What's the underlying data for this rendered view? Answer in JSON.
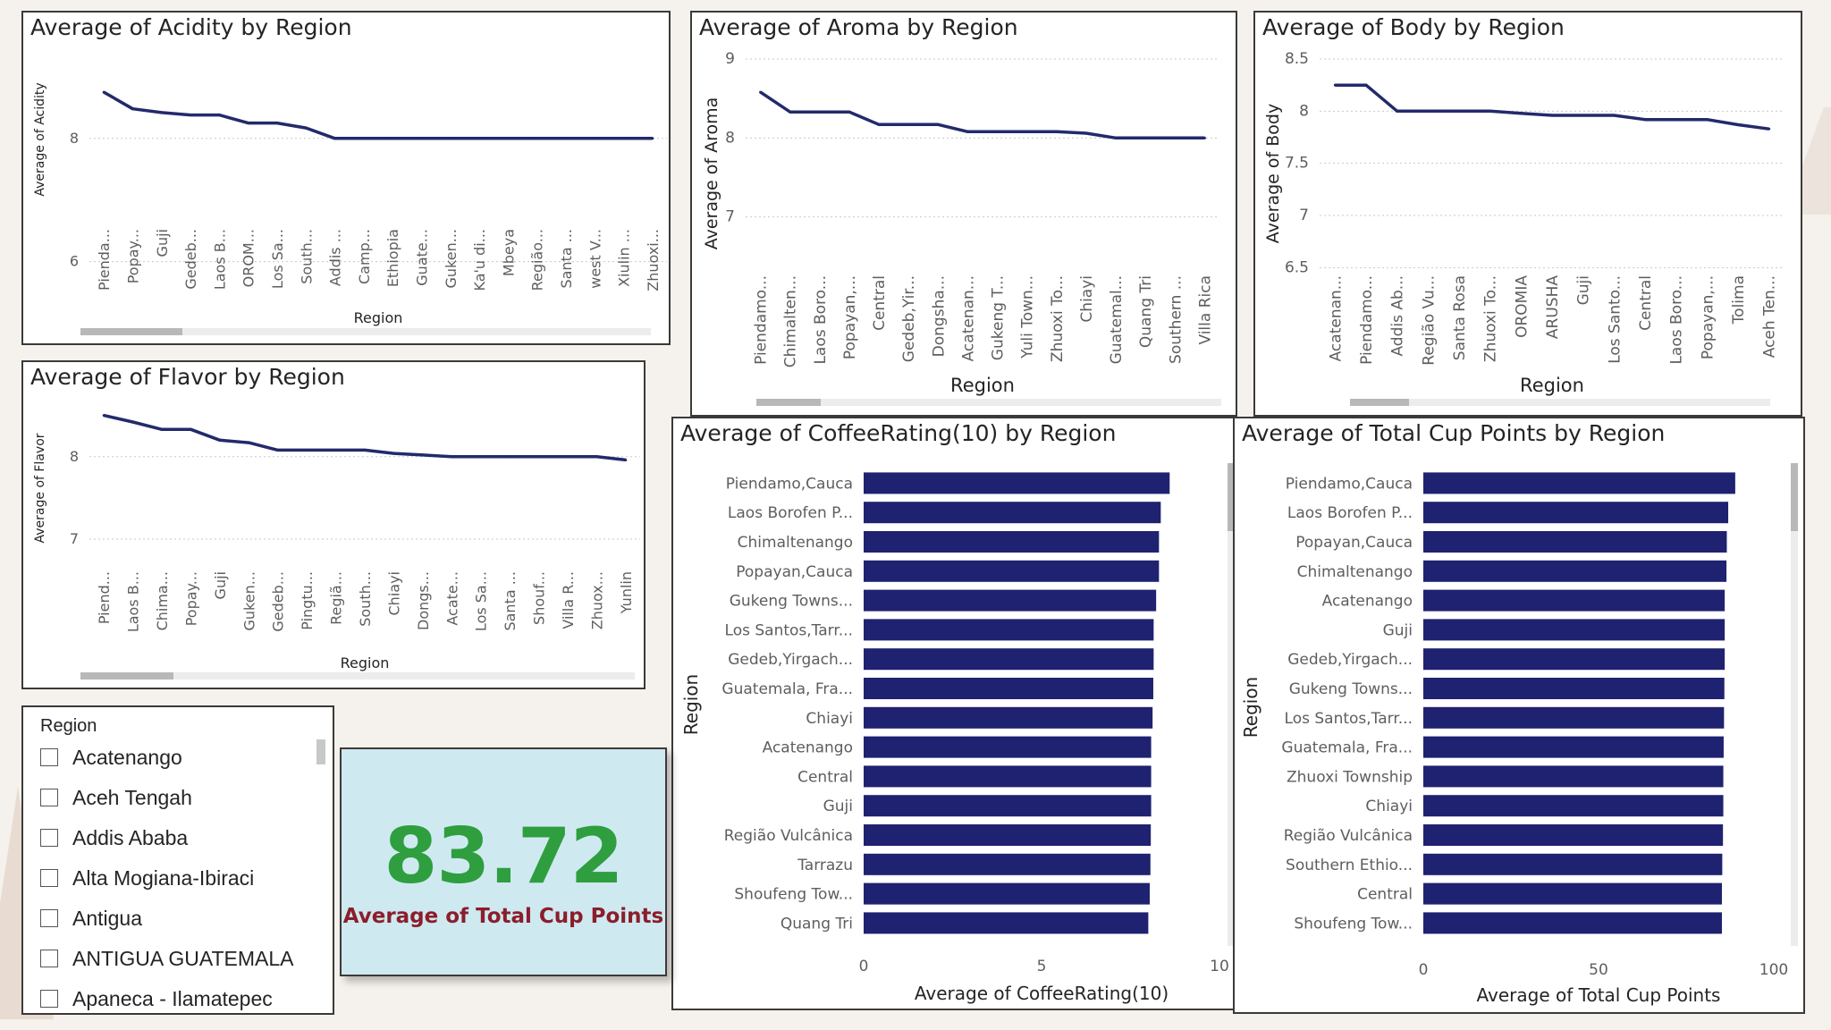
{
  "colors": {
    "line": "#232a6b",
    "bar": "#1f2270",
    "kpi_value": "#2e9e3f",
    "kpi_label": "#8b1e2a",
    "card_bg": "#cfe9f1"
  },
  "chart_data": [
    {
      "id": "acidity",
      "type": "line",
      "title": "Average of Acidity by Region",
      "xlabel": "Region",
      "ylabel": "Average of Acidity",
      "yticks": [
        6,
        8
      ],
      "ylim": [
        5.4,
        9.1
      ],
      "categories": [
        "Pienda...",
        "Popay...",
        "Guji",
        "Gedeb...",
        "Laos B...",
        "OROM...",
        "Los Sa...",
        "South...",
        "Addis ...",
        "Camp...",
        "Ethiopia",
        "Guate...",
        "Guken...",
        "Ka'u di...",
        "Mbeya",
        "Região...",
        "Santa ...",
        "west V...",
        "Xiulin ...",
        "Zhuoxi..."
      ],
      "values": [
        8.75,
        8.48,
        8.42,
        8.38,
        8.38,
        8.25,
        8.25,
        8.17,
        8.0,
        8.0,
        8.0,
        8.0,
        8.0,
        8.0,
        8.0,
        8.0,
        8.0,
        8.0,
        8.0,
        8.0
      ]
    },
    {
      "id": "aroma",
      "type": "line",
      "title": "Average of Aroma by Region",
      "xlabel": "Region",
      "ylabel": "Average of Aroma",
      "yticks": [
        7,
        8,
        9
      ],
      "ylim": [
        6.6,
        9.0
      ],
      "categories": [
        "Piendamo...",
        "Chimalten...",
        "Laos Boro...",
        "Popayan,...",
        "Central",
        "Gedeb,Yir...",
        "Dongsha...",
        "Acatenan...",
        "Gukeng T...",
        "Yuli Town...",
        "Zhuoxi To...",
        "Chiayi",
        "Guatemal...",
        "Quang Tri",
        "Southern ...",
        "Villa Rica"
      ],
      "values": [
        8.58,
        8.33,
        8.33,
        8.33,
        8.17,
        8.17,
        8.17,
        8.08,
        8.08,
        8.08,
        8.08,
        8.06,
        8.0,
        8.0,
        8.0,
        8.0
      ]
    },
    {
      "id": "body",
      "type": "line",
      "title": "Average of Body by Region",
      "xlabel": "Region",
      "ylabel": "Average of Body",
      "yticks": [
        6.5,
        7.0,
        7.5,
        8.0,
        8.5
      ],
      "ylim": [
        6.4,
        8.5
      ],
      "categories": [
        "Acatenan...",
        "Piendamo...",
        "Addis Ab...",
        "Região Vu...",
        "Santa Rosa",
        "Zhuoxi To...",
        "OROMIA",
        "ARUSHA",
        "Guji",
        "Los Santo...",
        "Central",
        "Laos Boro...",
        "Popayan,...",
        "Tolima",
        "Aceh Ten..."
      ],
      "values": [
        8.25,
        8.25,
        8.0,
        8.0,
        8.0,
        8.0,
        7.98,
        7.96,
        7.96,
        7.96,
        7.92,
        7.92,
        7.92,
        7.87,
        7.83
      ]
    },
    {
      "id": "flavor",
      "type": "line",
      "title": "Average of Flavor by Region",
      "xlabel": "Region",
      "ylabel": "Average of Flavor",
      "yticks": [
        7,
        8
      ],
      "ylim": [
        6.35,
        8.55
      ],
      "categories": [
        "Piend...",
        "Laos B...",
        "Chima...",
        "Popay...",
        "Guji",
        "Guken...",
        "Gedeb...",
        "Pingtu...",
        "Regiã...",
        "South...",
        "Chiayi",
        "Dongs...",
        "Acate...",
        "Los Sa...",
        "Santa ...",
        "Shouf...",
        "Villa R...",
        "Zhuox...",
        "Yunlin"
      ],
      "values": [
        8.5,
        8.42,
        8.33,
        8.33,
        8.2,
        8.17,
        8.08,
        8.08,
        8.08,
        8.08,
        8.04,
        8.02,
        8.0,
        8.0,
        8.0,
        8.0,
        8.0,
        8.0,
        7.96
      ]
    },
    {
      "id": "coffeerating",
      "type": "bar",
      "orientation": "horizontal",
      "title": "Average of CoffeeRating(10) by Region",
      "xlabel": "Average of CoffeeRating(10)",
      "ylabel": "Region",
      "xticks": [
        0,
        5,
        10
      ],
      "xlim": [
        0,
        10
      ],
      "categories": [
        "Piendamo,Cauca",
        "Laos Borofen P...",
        "Chimaltenango",
        "Popayan,Cauca",
        "Gukeng Towns...",
        "Los Santos,Tarr...",
        "Gedeb,Yirgach...",
        "Guatemala, Fra...",
        "Chiayi",
        "Acatenango",
        "Central",
        "Guji",
        "Região Vulcânica",
        "Tarrazu",
        "Shoufeng Tow...",
        "Quang Tri"
      ],
      "values": [
        8.6,
        8.35,
        8.3,
        8.3,
        8.22,
        8.15,
        8.15,
        8.14,
        8.12,
        8.08,
        8.08,
        8.08,
        8.07,
        8.06,
        8.04,
        8.0
      ]
    },
    {
      "id": "totalcup",
      "type": "bar",
      "orientation": "horizontal",
      "title": "Average of Total Cup Points by Region",
      "xlabel": "Average of Total Cup Points",
      "ylabel": "Region",
      "xticks": [
        0,
        50,
        100
      ],
      "xlim": [
        0,
        100
      ],
      "categories": [
        "Piendamo,Cauca",
        "Laos Borofen P...",
        "Popayan,Cauca",
        "Chimaltenango",
        "Acatenango",
        "Guji",
        "Gedeb,Yirgach...",
        "Gukeng Towns...",
        "Los Santos,Tarr...",
        "Guatemala, Fra...",
        "Zhuoxi Township",
        "Chiayi",
        "Região Vulcânica",
        "Southern Ethio...",
        "Central",
        "Shoufeng Tow..."
      ],
      "values": [
        89.0,
        87.0,
        86.6,
        86.5,
        86.0,
        86.0,
        86.0,
        85.9,
        85.8,
        85.7,
        85.6,
        85.6,
        85.5,
        85.3,
        85.2,
        85.2
      ]
    }
  ],
  "slicer": {
    "title": "Region",
    "items": [
      "Acatenango",
      "Aceh Tengah",
      "Addis Ababa",
      "Alta Mogiana-Ibiraci",
      "Antigua",
      "ANTIGUA GUATEMALA",
      "Apaneca - Ilamatepec"
    ]
  },
  "kpi": {
    "value": "83.72",
    "label": "Average of Total Cup Points"
  }
}
